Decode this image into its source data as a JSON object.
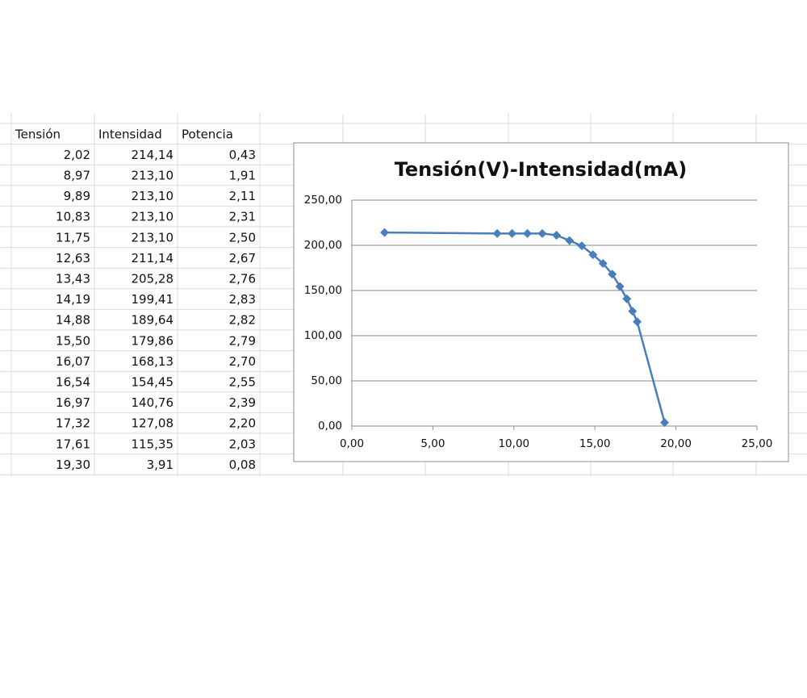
{
  "table": {
    "header": [
      "Tensión",
      "Intensidad",
      "Potencia"
    ],
    "rows": [
      [
        "2,02",
        "214,14",
        "0,43"
      ],
      [
        "8,97",
        "213,10",
        "1,91"
      ],
      [
        "9,89",
        "213,10",
        "2,11"
      ],
      [
        "10,83",
        "213,10",
        "2,31"
      ],
      [
        "11,75",
        "213,10",
        "2,50"
      ],
      [
        "12,63",
        "211,14",
        "2,67"
      ],
      [
        "13,43",
        "205,28",
        "2,76"
      ],
      [
        "14,19",
        "199,41",
        "2,83"
      ],
      [
        "14,88",
        "189,64",
        "2,82"
      ],
      [
        "15,50",
        "179,86",
        "2,79"
      ],
      [
        "16,07",
        "168,13",
        "2,70"
      ],
      [
        "16,54",
        "154,45",
        "2,55"
      ],
      [
        "16,97",
        "140,76",
        "2,39"
      ],
      [
        "17,32",
        "127,08",
        "2,20"
      ],
      [
        "17,61",
        "115,35",
        "2,03"
      ],
      [
        "19,30",
        "3,91",
        "0,08"
      ]
    ]
  },
  "chart_data": {
    "type": "line",
    "title": "Tensión(V)-Intensidad(mA)",
    "x": [
      2.02,
      8.97,
      9.89,
      10.83,
      11.75,
      12.63,
      13.43,
      14.19,
      14.88,
      15.5,
      16.07,
      16.54,
      16.97,
      17.32,
      17.61,
      19.3
    ],
    "values": [
      214.14,
      213.1,
      213.1,
      213.1,
      213.1,
      211.14,
      205.28,
      199.41,
      189.64,
      179.86,
      168.13,
      154.45,
      140.76,
      127.08,
      115.35,
      3.91
    ],
    "color": "#4a7ebb",
    "marker": "diamond",
    "grid": true,
    "xlim": [
      0,
      25
    ],
    "xticks": [
      {
        "value": 0,
        "label": "0,00"
      },
      {
        "value": 5,
        "label": "5,00"
      },
      {
        "value": 10,
        "label": "10,00"
      },
      {
        "value": 15,
        "label": "15,00"
      },
      {
        "value": 20,
        "label": "20,00"
      },
      {
        "value": 25,
        "label": "25,00"
      }
    ],
    "ylim": [
      0,
      250
    ],
    "yticks": [
      {
        "value": 0,
        "label": "0,00"
      },
      {
        "value": 50,
        "label": "50,00"
      },
      {
        "value": 100,
        "label": "100,00"
      },
      {
        "value": 150,
        "label": "150,00"
      },
      {
        "value": 200,
        "label": "200,00"
      },
      {
        "value": 250,
        "label": "250,00"
      }
    ]
  }
}
